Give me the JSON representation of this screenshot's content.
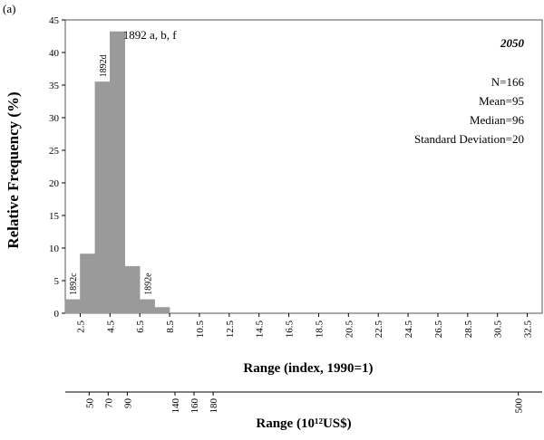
{
  "panel_label": "(a)",
  "year_label": "2050",
  "stats": [
    "N=166",
    "Mean=95",
    "Median=96",
    "Standard Deviation=20"
  ],
  "chart_data": {
    "type": "bar",
    "title": "",
    "ylabel": "Relative Frequency (%)",
    "xlabel": "Range (index, 1990=1)",
    "ylim": [
      0,
      45
    ],
    "yticks": [
      0,
      5,
      10,
      15,
      20,
      25,
      30,
      35,
      40,
      45
    ],
    "xlim": [
      1.5,
      33.5
    ],
    "xticks": [
      "2.5",
      "4.5",
      "6.5",
      "8.5",
      "10.5",
      "12.5",
      "14.5",
      "16.5",
      "18.5",
      "20.5",
      "22.5",
      "24.5",
      "26.5",
      "28.5",
      "30.5",
      "32.5"
    ],
    "bins": [
      {
        "from": 1.5,
        "to": 2.5,
        "value": 2.1
      },
      {
        "from": 2.5,
        "to": 3.5,
        "value": 9.1
      },
      {
        "from": 3.5,
        "to": 4.5,
        "value": 35.5
      },
      {
        "from": 4.5,
        "to": 5.5,
        "value": 43.2
      },
      {
        "from": 5.5,
        "to": 6.5,
        "value": 7.2
      },
      {
        "from": 6.5,
        "to": 7.5,
        "value": 2.1
      },
      {
        "from": 7.5,
        "to": 8.5,
        "value": 0.9
      }
    ],
    "annotations": [
      {
        "text": "1892c",
        "bin": 0,
        "rotated": true
      },
      {
        "text": "1892d",
        "bin": 2,
        "rotated": true
      },
      {
        "text": "1892 a, b, f",
        "bin": 4,
        "rotated": false
      },
      {
        "text": "1892e",
        "bin": 5,
        "rotated": true
      }
    ],
    "secondary_axis": {
      "label": "Range (10¹²US$)",
      "ticks": [
        {
          "label": "50",
          "value": 50
        },
        {
          "label": "70",
          "value": 70
        },
        {
          "label": "90",
          "value": 90
        },
        {
          "label": "140",
          "value": 140
        },
        {
          "label": "160",
          "value": 160
        },
        {
          "label": "180",
          "value": 180
        },
        {
          "label": "500",
          "value": 500
        }
      ],
      "xlim": [
        25,
        525
      ]
    }
  }
}
